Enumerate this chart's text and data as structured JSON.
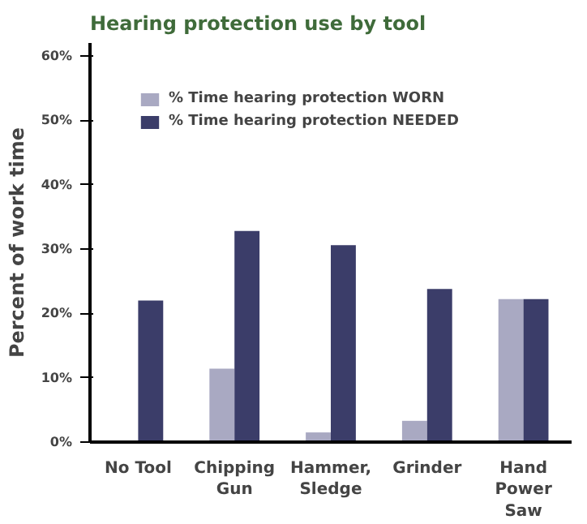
{
  "chart_data": {
    "type": "bar",
    "title": "Hearing protection use by tool",
    "ylabel": "Percent of work time",
    "categories": [
      "No Tool",
      "Chipping\nGun",
      "Hammer,\nSledge",
      "Grinder",
      "Hand\nPower\nSaw"
    ],
    "series": [
      {
        "name": "% Time hearing protection WORN",
        "color": "#a9a9c2",
        "values": [
          0,
          11.4,
          1.5,
          3.3,
          22.2
        ]
      },
      {
        "name": "% Time hearing protection NEEDED",
        "color": "#3b3d69",
        "values": [
          22.0,
          32.8,
          30.6,
          23.8,
          22.2
        ]
      }
    ],
    "ylim": [
      0,
      62
    ],
    "yticks": [
      {
        "value": 0,
        "label": "0%"
      },
      {
        "value": 10,
        "label": "10%"
      },
      {
        "value": 20,
        "label": "20%"
      },
      {
        "value": 30,
        "label": "30%"
      },
      {
        "value": 40,
        "label": "40%"
      },
      {
        "value": 50,
        "label": "50%"
      },
      {
        "value": 60,
        "label": "60%"
      }
    ],
    "grid": false,
    "legend": "top left"
  }
}
